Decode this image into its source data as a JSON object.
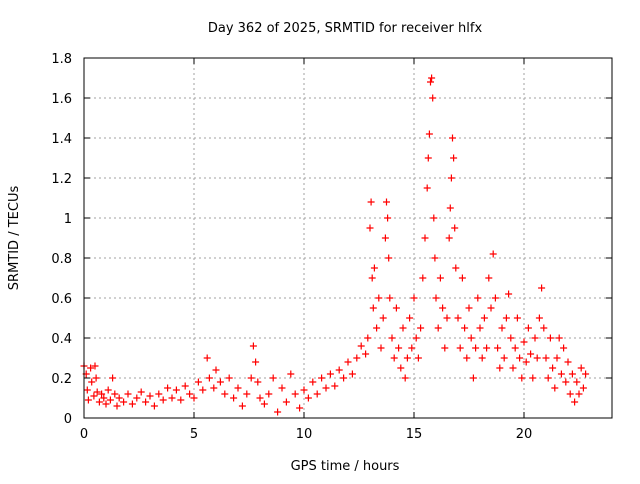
{
  "chart_data": {
    "type": "scatter",
    "title": "Day 362 of 2025, SRMTID for receiver hlfx",
    "xlabel": "GPS time / hours",
    "ylabel": "SRMTID / TECUs",
    "xlim": [
      0,
      24
    ],
    "ylim": [
      0,
      1.8
    ],
    "xticks": [
      0,
      5,
      10,
      15,
      20
    ],
    "xtick_labels": [
      "0",
      "5",
      "10",
      "15",
      "20"
    ],
    "yticks": [
      0,
      0.2,
      0.4,
      0.6,
      0.8,
      1.0,
      1.2,
      1.4,
      1.6,
      1.8
    ],
    "ytick_labels": [
      "0",
      "0.2",
      "0.4",
      "0.6",
      "0.8",
      "1",
      "1.2",
      "1.4",
      "1.6",
      "1.8"
    ],
    "grid": true,
    "marker": "+",
    "color": "#ff0000",
    "series": [
      {
        "name": "SRMTID",
        "points": [
          [
            0.0,
            0.26
          ],
          [
            0.1,
            0.22
          ],
          [
            0.15,
            0.14
          ],
          [
            0.2,
            0.09
          ],
          [
            0.3,
            0.25
          ],
          [
            0.35,
            0.18
          ],
          [
            0.45,
            0.11
          ],
          [
            0.5,
            0.26
          ],
          [
            0.55,
            0.2
          ],
          [
            0.6,
            0.13
          ],
          [
            0.7,
            0.08
          ],
          [
            0.8,
            0.12
          ],
          [
            0.9,
            0.1
          ],
          [
            1.0,
            0.07
          ],
          [
            1.1,
            0.14
          ],
          [
            1.2,
            0.09
          ],
          [
            1.3,
            0.2
          ],
          [
            1.4,
            0.12
          ],
          [
            1.5,
            0.06
          ],
          [
            1.6,
            0.1
          ],
          [
            1.8,
            0.08
          ],
          [
            2.0,
            0.12
          ],
          [
            2.2,
            0.07
          ],
          [
            2.4,
            0.1
          ],
          [
            2.6,
            0.13
          ],
          [
            2.8,
            0.08
          ],
          [
            3.0,
            0.11
          ],
          [
            3.2,
            0.06
          ],
          [
            3.4,
            0.12
          ],
          [
            3.6,
            0.09
          ],
          [
            3.8,
            0.15
          ],
          [
            4.0,
            0.1
          ],
          [
            4.2,
            0.14
          ],
          [
            4.4,
            0.09
          ],
          [
            4.6,
            0.16
          ],
          [
            4.8,
            0.12
          ],
          [
            5.0,
            0.1
          ],
          [
            5.2,
            0.18
          ],
          [
            5.4,
            0.14
          ],
          [
            5.6,
            0.3
          ],
          [
            5.7,
            0.2
          ],
          [
            5.9,
            0.15
          ],
          [
            6.0,
            0.24
          ],
          [
            6.2,
            0.18
          ],
          [
            6.4,
            0.12
          ],
          [
            6.6,
            0.2
          ],
          [
            6.8,
            0.1
          ],
          [
            7.0,
            0.15
          ],
          [
            7.2,
            0.06
          ],
          [
            7.4,
            0.12
          ],
          [
            7.6,
            0.2
          ],
          [
            7.7,
            0.36
          ],
          [
            7.8,
            0.28
          ],
          [
            7.9,
            0.18
          ],
          [
            8.0,
            0.1
          ],
          [
            8.2,
            0.07
          ],
          [
            8.4,
            0.12
          ],
          [
            8.6,
            0.2
          ],
          [
            8.8,
            0.03
          ],
          [
            9.0,
            0.15
          ],
          [
            9.2,
            0.08
          ],
          [
            9.4,
            0.22
          ],
          [
            9.6,
            0.12
          ],
          [
            9.8,
            0.05
          ],
          [
            10.0,
            0.14
          ],
          [
            10.2,
            0.1
          ],
          [
            10.4,
            0.18
          ],
          [
            10.6,
            0.12
          ],
          [
            10.8,
            0.2
          ],
          [
            11.0,
            0.15
          ],
          [
            11.2,
            0.22
          ],
          [
            11.4,
            0.16
          ],
          [
            11.6,
            0.24
          ],
          [
            11.8,
            0.2
          ],
          [
            12.0,
            0.28
          ],
          [
            12.2,
            0.22
          ],
          [
            12.4,
            0.3
          ],
          [
            12.6,
            0.36
          ],
          [
            12.8,
            0.32
          ],
          [
            12.9,
            0.4
          ],
          [
            13.0,
            0.95
          ],
          [
            13.05,
            1.08
          ],
          [
            13.1,
            0.7
          ],
          [
            13.15,
            0.55
          ],
          [
            13.2,
            0.75
          ],
          [
            13.3,
            0.45
          ],
          [
            13.4,
            0.6
          ],
          [
            13.5,
            0.35
          ],
          [
            13.6,
            0.5
          ],
          [
            13.7,
            0.9
          ],
          [
            13.75,
            1.08
          ],
          [
            13.8,
            1.0
          ],
          [
            13.85,
            0.8
          ],
          [
            13.9,
            0.6
          ],
          [
            14.0,
            0.4
          ],
          [
            14.1,
            0.3
          ],
          [
            14.2,
            0.55
          ],
          [
            14.3,
            0.35
          ],
          [
            14.4,
            0.25
          ],
          [
            14.5,
            0.45
          ],
          [
            14.6,
            0.2
          ],
          [
            14.7,
            0.3
          ],
          [
            14.8,
            0.5
          ],
          [
            14.9,
            0.35
          ],
          [
            15.0,
            0.6
          ],
          [
            15.1,
            0.4
          ],
          [
            15.2,
            0.3
          ],
          [
            15.3,
            0.45
          ],
          [
            15.4,
            0.7
          ],
          [
            15.5,
            0.9
          ],
          [
            15.6,
            1.15
          ],
          [
            15.65,
            1.3
          ],
          [
            15.7,
            1.42
          ],
          [
            15.75,
            1.68
          ],
          [
            15.8,
            1.7
          ],
          [
            15.85,
            1.6
          ],
          [
            15.9,
            1.0
          ],
          [
            15.95,
            0.8
          ],
          [
            16.0,
            0.6
          ],
          [
            16.1,
            0.45
          ],
          [
            16.2,
            0.7
          ],
          [
            16.3,
            0.55
          ],
          [
            16.4,
            0.35
          ],
          [
            16.5,
            0.5
          ],
          [
            16.6,
            0.9
          ],
          [
            16.65,
            1.05
          ],
          [
            16.7,
            1.2
          ],
          [
            16.75,
            1.4
          ],
          [
            16.8,
            1.3
          ],
          [
            16.85,
            0.95
          ],
          [
            16.9,
            0.75
          ],
          [
            17.0,
            0.5
          ],
          [
            17.1,
            0.35
          ],
          [
            17.2,
            0.7
          ],
          [
            17.3,
            0.45
          ],
          [
            17.4,
            0.3
          ],
          [
            17.5,
            0.55
          ],
          [
            17.6,
            0.4
          ],
          [
            17.7,
            0.2
          ],
          [
            17.8,
            0.35
          ],
          [
            17.9,
            0.6
          ],
          [
            18.0,
            0.45
          ],
          [
            18.1,
            0.3
          ],
          [
            18.2,
            0.5
          ],
          [
            18.3,
            0.35
          ],
          [
            18.4,
            0.7
          ],
          [
            18.5,
            0.55
          ],
          [
            18.6,
            0.82
          ],
          [
            18.7,
            0.6
          ],
          [
            18.8,
            0.35
          ],
          [
            18.9,
            0.25
          ],
          [
            19.0,
            0.45
          ],
          [
            19.1,
            0.3
          ],
          [
            19.2,
            0.5
          ],
          [
            19.3,
            0.62
          ],
          [
            19.4,
            0.4
          ],
          [
            19.5,
            0.25
          ],
          [
            19.6,
            0.35
          ],
          [
            19.7,
            0.5
          ],
          [
            19.8,
            0.3
          ],
          [
            19.9,
            0.2
          ],
          [
            20.0,
            0.38
          ],
          [
            20.1,
            0.28
          ],
          [
            20.2,
            0.45
          ],
          [
            20.3,
            0.32
          ],
          [
            20.4,
            0.2
          ],
          [
            20.5,
            0.4
          ],
          [
            20.6,
            0.3
          ],
          [
            20.7,
            0.5
          ],
          [
            20.8,
            0.65
          ],
          [
            20.9,
            0.45
          ],
          [
            21.0,
            0.3
          ],
          [
            21.1,
            0.2
          ],
          [
            21.2,
            0.4
          ],
          [
            21.3,
            0.25
          ],
          [
            21.4,
            0.15
          ],
          [
            21.5,
            0.3
          ],
          [
            21.6,
            0.4
          ],
          [
            21.7,
            0.22
          ],
          [
            21.8,
            0.35
          ],
          [
            21.9,
            0.18
          ],
          [
            22.0,
            0.28
          ],
          [
            22.1,
            0.12
          ],
          [
            22.2,
            0.22
          ],
          [
            22.3,
            0.08
          ],
          [
            22.4,
            0.18
          ],
          [
            22.5,
            0.12
          ],
          [
            22.6,
            0.25
          ],
          [
            22.7,
            0.15
          ],
          [
            22.8,
            0.22
          ]
        ]
      }
    ]
  }
}
